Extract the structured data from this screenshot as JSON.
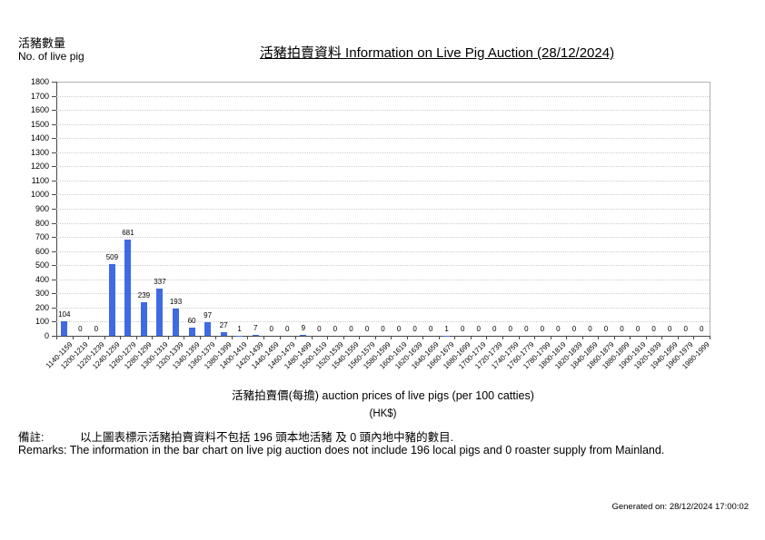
{
  "header": {
    "y_axis_title_cn": "活豬數量",
    "y_axis_title_en": "No. of live pig",
    "title": "活豬拍賣資料 Information on Live Pig Auction (28/12/2024)"
  },
  "chart_data": {
    "type": "bar",
    "title": "活豬拍賣資料 Information on Live Pig Auction (28/12/2024)",
    "ylabel": "活豬數量 No. of live pig",
    "xlabel": "活豬拍賣價(每擔) auction prices of live pigs (per 100 catties) (HK$)",
    "ylim": [
      0,
      1800
    ],
    "ytick_step": 100,
    "grid": "horizontal-dotted",
    "legend": "none",
    "bar_color": "#3E6BE4",
    "categories": [
      "1140-1159",
      "1200-1219",
      "1220-1239",
      "1240-1259",
      "1260-1279",
      "1280-1299",
      "1300-1319",
      "1320-1339",
      "1340-1359",
      "1360-1379",
      "1380-1399",
      "1400-1419",
      "1420-1439",
      "1440-1459",
      "1460-1479",
      "1480-1499",
      "1500-1519",
      "1520-1539",
      "1540-1559",
      "1560-1579",
      "1580-1599",
      "1600-1619",
      "1620-1639",
      "1640-1659",
      "1660-1679",
      "1680-1699",
      "1700-1719",
      "1720-1739",
      "1740-1759",
      "1760-1779",
      "1780-1799",
      "1800-1819",
      "1820-1839",
      "1840-1859",
      "1860-1879",
      "1880-1899",
      "1900-1919",
      "1920-1939",
      "1940-1959",
      "1960-1979",
      "1980-1999"
    ],
    "values": [
      104,
      0,
      0,
      509,
      681,
      239,
      337,
      193,
      60,
      97,
      27,
      1,
      7,
      0,
      0,
      9,
      0,
      0,
      0,
      0,
      0,
      0,
      0,
      0,
      1,
      0,
      0,
      0,
      0,
      0,
      0,
      0,
      0,
      0,
      0,
      0,
      0,
      0,
      0,
      0,
      0
    ]
  },
  "xaxis": {
    "label": "活豬拍賣價(每擔) auction prices of live pigs (per 100 catties)",
    "units": "(HK$)"
  },
  "remarks": {
    "cn_prefix": "備註:",
    "cn_text": "以上圖表標示活豬拍賣資料不包括 196 頭本地活豬 及 0 頭內地中豬的數目.",
    "en": "Remarks: The information in the bar chart on live pig auction does not include 196 local pigs and 0 roaster supply from Mainland."
  },
  "footer": {
    "generated": "Generated on: 28/12/2024 17:00:02"
  }
}
